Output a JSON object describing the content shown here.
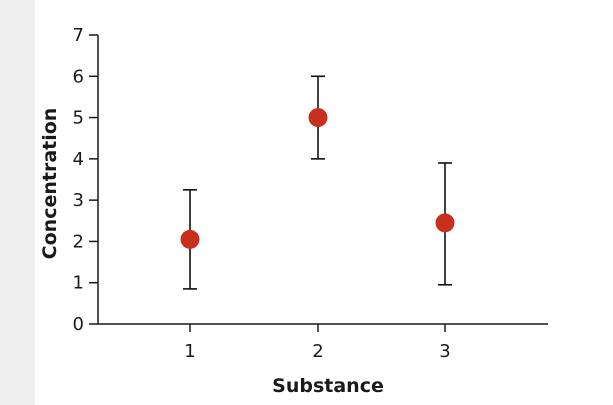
{
  "chart_data": {
    "type": "scatter",
    "title": "",
    "xlabel": "Substance",
    "ylabel": "Concentration",
    "x_ticks": [
      "1",
      "2",
      "3"
    ],
    "y_ticks": [
      "0",
      "1",
      "2",
      "3",
      "4",
      "5",
      "6",
      "7"
    ],
    "ylim": [
      0,
      7
    ],
    "xlim": [
      0.5,
      3.5
    ],
    "grid": false,
    "legend": "none",
    "series": [
      {
        "points": [
          {
            "x": 1,
            "y": 2.05,
            "err_low": 0.85,
            "err_high": 3.25
          },
          {
            "x": 2,
            "y": 5.0,
            "err_low": 4.0,
            "err_high": 6.0
          },
          {
            "x": 3,
            "y": 2.45,
            "err_low": 0.95,
            "err_high": 3.9
          }
        ],
        "color": "#c8301e"
      }
    ]
  }
}
